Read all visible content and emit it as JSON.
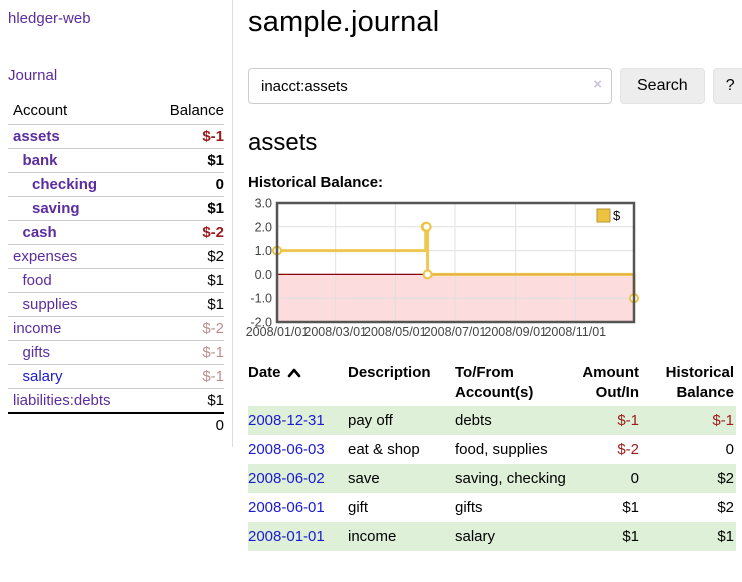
{
  "app": {
    "brand": "hledger-web",
    "nav_journal": "Journal"
  },
  "colors": {
    "link_purple": "#5b2d9e",
    "link_blue": "#1a1ad0",
    "negative_strong": "#9c1b1b",
    "negative_muted": "#bc8f8f",
    "row_green": "#dff0d8",
    "chart_line": "#edc240",
    "chart_negative_bg": "#fcdcdc",
    "zero_line": "#8b0000"
  },
  "sidebar": {
    "col_account": "Account",
    "col_balance": "Balance",
    "rows": [
      {
        "name": "assets",
        "depth": 1,
        "bold": true,
        "balance": "$-1",
        "balance_style": "neg",
        "link": "purple"
      },
      {
        "name": "bank",
        "depth": 2,
        "bold": true,
        "balance": "$1",
        "balance_style": "plain",
        "link": "purple"
      },
      {
        "name": "checking",
        "depth": 3,
        "bold": true,
        "balance": "0",
        "balance_style": "plain",
        "link": "purple"
      },
      {
        "name": "saving",
        "depth": 3,
        "bold": true,
        "balance": "$1",
        "balance_style": "plain",
        "link": "purple"
      },
      {
        "name": "cash",
        "depth": 2,
        "bold": true,
        "balance": "$-2",
        "balance_style": "neg",
        "link": "purple"
      },
      {
        "name": "expenses",
        "depth": 1,
        "bold": false,
        "balance": "$2",
        "balance_style": "plain",
        "link": "purple"
      },
      {
        "name": "food",
        "depth": 2,
        "bold": false,
        "balance": "$1",
        "balance_style": "plain",
        "link": "purple"
      },
      {
        "name": "supplies",
        "depth": 2,
        "bold": false,
        "balance": "$1",
        "balance_style": "plain",
        "link": "purple"
      },
      {
        "name": "income",
        "depth": 1,
        "bold": false,
        "balance": "$-2",
        "balance_style": "muted",
        "link": "purple"
      },
      {
        "name": "gifts",
        "depth": 2,
        "bold": false,
        "balance": "$-1",
        "balance_style": "muted",
        "link": "purple"
      },
      {
        "name": "salary",
        "depth": 2,
        "bold": false,
        "balance": "$-1",
        "balance_style": "muted",
        "link": "blue"
      },
      {
        "name": "liabilities:debts",
        "depth": 1,
        "bold": false,
        "balance": "$1",
        "balance_style": "plain",
        "link": "purple"
      }
    ],
    "total": "0"
  },
  "main": {
    "title": "sample.journal",
    "search": {
      "value": "inacct:assets",
      "clear_icon": "×",
      "button_label": "Search",
      "help_label": "?"
    },
    "account_heading": "assets",
    "register": {
      "headers": [
        "Date",
        "Description",
        "To/From Account(s)",
        "Amount Out/In",
        "Historical Balance"
      ],
      "sort": "date-ascending",
      "rows": [
        {
          "date": "2008-12-31",
          "description": "pay off",
          "accounts": "debts",
          "amount": "$-1",
          "amount_style": "neg",
          "balance": "$-1",
          "balance_style": "neg"
        },
        {
          "date": "2008-06-03",
          "description": "eat & shop",
          "accounts": "food, supplies",
          "amount": "$-2",
          "amount_style": "neg",
          "balance": "0",
          "balance_style": "plain"
        },
        {
          "date": "2008-06-02",
          "description": "save",
          "accounts": "saving, checking",
          "amount": "0",
          "amount_style": "plain",
          "balance": "$2",
          "balance_style": "plain"
        },
        {
          "date": "2008-06-01",
          "description": "gift",
          "accounts": "gifts",
          "amount": "$1",
          "amount_style": "plain",
          "balance": "$2",
          "balance_style": "plain"
        },
        {
          "date": "2008-01-01",
          "description": "income",
          "accounts": "salary",
          "amount": "$1",
          "amount_style": "plain",
          "balance": "$1",
          "balance_style": "plain"
        }
      ]
    }
  },
  "chart_data": {
    "type": "line",
    "title": "Historical Balance:",
    "step": true,
    "series": [
      {
        "name": "$",
        "color": "#edc240",
        "points": [
          [
            "2008-01-01",
            1
          ],
          [
            "2008-06-01",
            2
          ],
          [
            "2008-06-02",
            2
          ],
          [
            "2008-06-03",
            0
          ],
          [
            "2008-12-31",
            -1
          ]
        ]
      }
    ],
    "xlim": [
      "2008-01-01",
      "2008-12-31"
    ],
    "ylim": [
      -2,
      3
    ],
    "x_ticks": [
      {
        "date": "2008-01-01",
        "label": "2008/01/01"
      },
      {
        "date": "2008-03-01",
        "label": "2008/03/01"
      },
      {
        "date": "2008-05-01",
        "label": "2008/05/01"
      },
      {
        "date": "2008-07-01",
        "label": "2008/07/01"
      },
      {
        "date": "2008-09-01",
        "label": "2008/09/01"
      },
      {
        "date": "2008-11-01",
        "label": "2008/11/01"
      }
    ],
    "y_ticks": [
      {
        "value": 3,
        "label": "3.0"
      },
      {
        "value": 2,
        "label": "2.0"
      },
      {
        "value": 1,
        "label": "1.0"
      },
      {
        "value": 0,
        "label": "0.0"
      },
      {
        "value": -1,
        "label": "-1.0"
      },
      {
        "value": -2,
        "label": "-2.0"
      }
    ],
    "grid": true,
    "negative_region_shaded": true,
    "legend": {
      "label": "$",
      "position": "top-right"
    }
  }
}
